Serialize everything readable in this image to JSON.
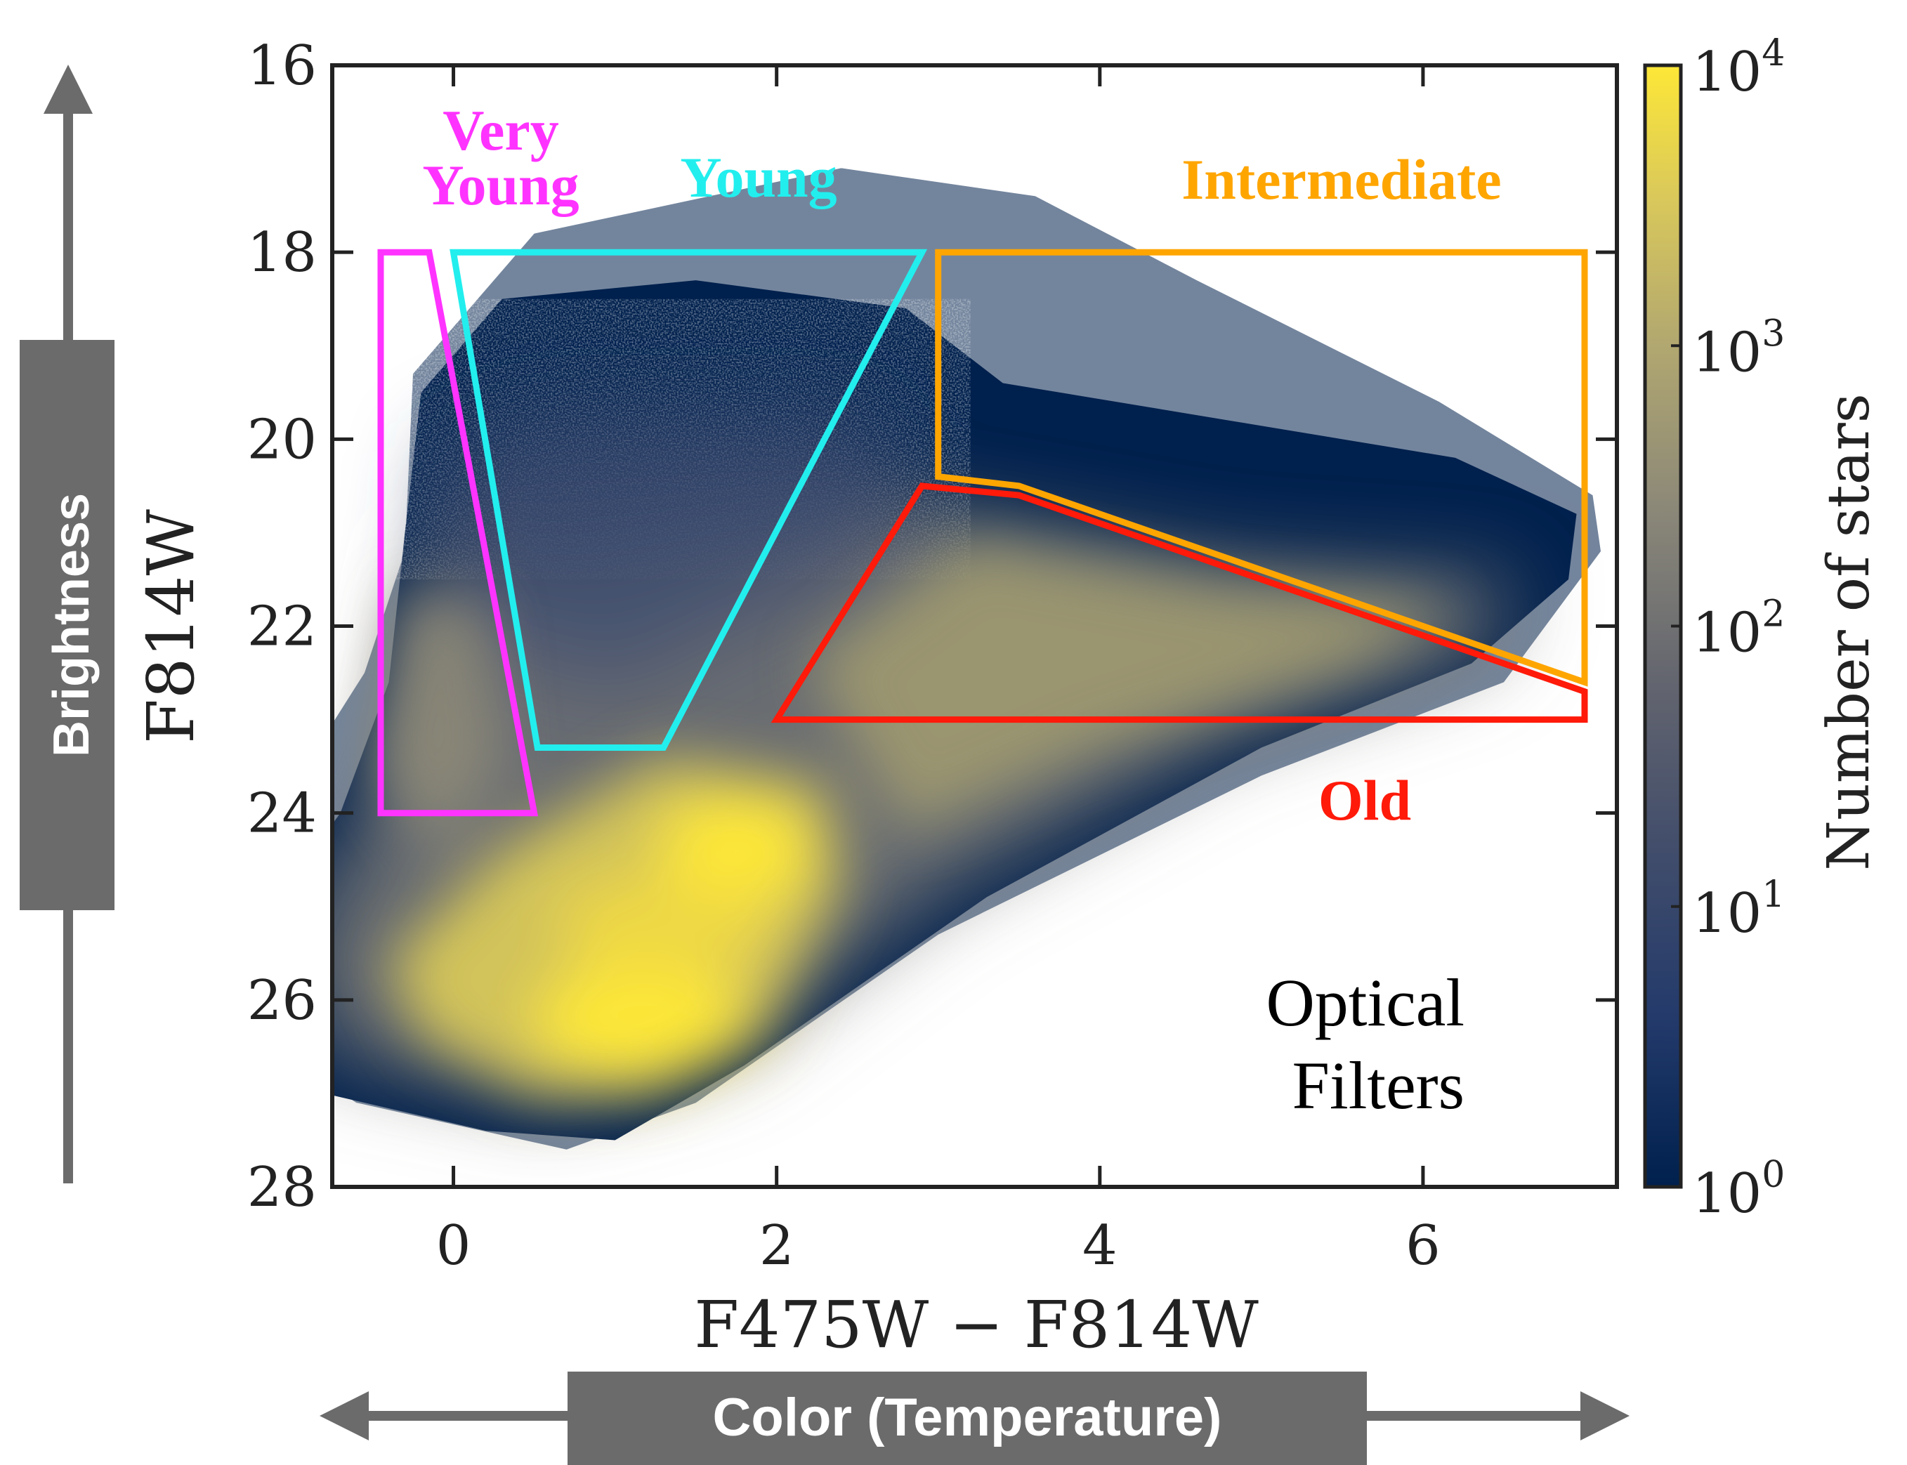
{
  "chart_data": {
    "type": "heatmap",
    "subtype": "color-magnitude diagram (Hess diagram)",
    "xlabel": "F475W − F814W",
    "ylabel": "F814W",
    "xlim": [
      -0.75,
      7.2
    ],
    "ylim": [
      28,
      16
    ],
    "y_inverted": true,
    "x_ticks": [
      0,
      2,
      4,
      6
    ],
    "x_tick_labels": [
      "0",
      "2",
      "4",
      "6"
    ],
    "y_ticks": [
      16,
      18,
      20,
      22,
      24,
      26,
      28
    ],
    "y_tick_labels": [
      "16",
      "18",
      "20",
      "22",
      "24",
      "26",
      "28"
    ],
    "colorbar": {
      "label": "Number of stars",
      "scale": "log",
      "colormap": "cividis",
      "min": 1,
      "max": 10000,
      "ticks": [
        {
          "base": "10",
          "exp": "0"
        },
        {
          "base": "10",
          "exp": "1"
        },
        {
          "base": "10",
          "exp": "2"
        },
        {
          "base": "10",
          "exp": "3"
        },
        {
          "base": "10",
          "exp": "4"
        }
      ],
      "color_low": "#00204d",
      "color_mid": "#7c7b78",
      "color_high": "#fde737"
    },
    "regions": [
      {
        "name": "Very Young",
        "label_lines": [
          "Very",
          "Young"
        ],
        "color": "#ff33ff",
        "polygon": [
          [
            -0.45,
            18.0
          ],
          [
            -0.15,
            18.0
          ],
          [
            0.5,
            24.0
          ],
          [
            -0.45,
            24.0
          ]
        ]
      },
      {
        "name": "Young",
        "label_lines": [
          "Young"
        ],
        "color": "#22eeee",
        "polygon": [
          [
            0.0,
            18.0
          ],
          [
            2.9,
            18.0
          ],
          [
            1.3,
            23.3
          ],
          [
            0.52,
            23.3
          ]
        ]
      },
      {
        "name": "Intermediate",
        "label_lines": [
          "Intermediate"
        ],
        "color": "#ffa500",
        "polygon": [
          [
            3.0,
            18.0
          ],
          [
            7.0,
            18.0
          ],
          [
            7.0,
            22.6
          ],
          [
            3.5,
            20.5
          ],
          [
            3.0,
            20.4
          ]
        ]
      },
      {
        "name": "Old",
        "label_lines": [
          "Old"
        ],
        "color": "#ff1a0a",
        "polygon": [
          [
            2.0,
            23.0
          ],
          [
            2.9,
            20.5
          ],
          [
            3.5,
            20.6
          ],
          [
            7.0,
            22.7
          ],
          [
            7.0,
            23.0
          ]
        ]
      }
    ],
    "annotation_lines": [
      "Optical",
      "Filters"
    ],
    "density_features": [
      {
        "x": 1.7,
        "y": 24.5,
        "density": "10^4 peak"
      },
      {
        "x": 1.2,
        "y": 26.2,
        "density": "10^4 peak"
      },
      {
        "x": 3.5,
        "y": 22.0,
        "density": "10^2"
      },
      {
        "x": 0.0,
        "y": 23.0,
        "density": "10^2"
      }
    ]
  },
  "outer_labels": {
    "brightness": "Brightness",
    "color_temperature": "Color (Temperature)"
  },
  "banner_color": "#6b6b6b"
}
